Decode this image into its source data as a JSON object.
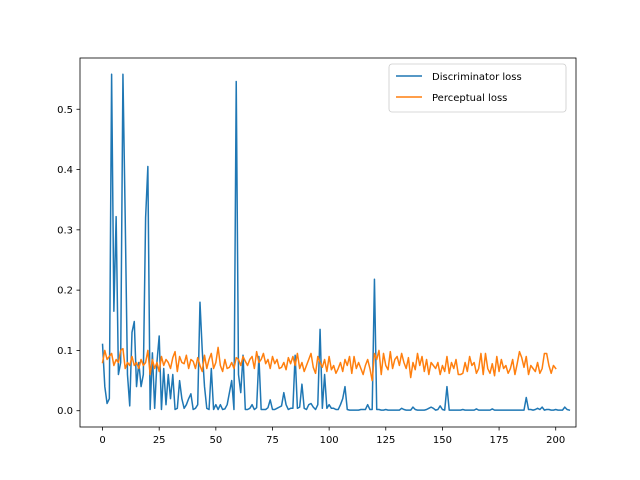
{
  "chart_data": {
    "type": "line",
    "title": "",
    "xlabel": "",
    "ylabel": "",
    "xlim": [
      -9.95,
      208.95
    ],
    "ylim": [
      -0.027,
      0.585
    ],
    "xticks": [
      0,
      25,
      50,
      75,
      100,
      125,
      150,
      175,
      200
    ],
    "yticks": [
      0.0,
      0.1,
      0.2,
      0.3,
      0.4,
      0.5
    ],
    "xtick_labels": [
      "0",
      "25",
      "50",
      "75",
      "100",
      "125",
      "150",
      "175",
      "200"
    ],
    "ytick_labels": [
      "0.0",
      "0.1",
      "0.2",
      "0.3",
      "0.4",
      "0.5"
    ],
    "grid": false,
    "legend": "top-right",
    "series": [
      {
        "name": "Discriminator loss",
        "color": "#1f77b4",
        "values": [
          0.11,
          0.04,
          0.012,
          0.02,
          0.558,
          0.165,
          0.322,
          0.06,
          0.08,
          0.558,
          0.32,
          0.06,
          0.008,
          0.13,
          0.148,
          0.04,
          0.08,
          0.04,
          0.06,
          0.32,
          0.405,
          0.002,
          0.096,
          0.004,
          0.08,
          0.124,
          0.002,
          0.07,
          0.01,
          0.06,
          0.02,
          0.06,
          0.002,
          0.004,
          0.05,
          0.02,
          0.004,
          0.01,
          0.02,
          0.028,
          0.002,
          0.004,
          0.01,
          0.18,
          0.1,
          0.04,
          0.004,
          0.002,
          0.07,
          0.002,
          0.01,
          0.002,
          0.01,
          0.002,
          0.003,
          0.01,
          0.03,
          0.05,
          0.002,
          0.546,
          0.06,
          0.03,
          0.092,
          0.002,
          0.002,
          0.004,
          0.01,
          0.002,
          0.005,
          0.09,
          0.002,
          0.002,
          0.002,
          0.005,
          0.018,
          0.002,
          0.002,
          0.004,
          0.006,
          0.008,
          0.03,
          0.01,
          0.002,
          0.004,
          0.004,
          0.092,
          0.004,
          0.006,
          0.044,
          0.004,
          0.002,
          0.01,
          0.012,
          0.006,
          0.002,
          0.01,
          0.135,
          0.004,
          0.06,
          0.004,
          0.01,
          0.004,
          0.004,
          0.002,
          0.002,
          0.01,
          0.02,
          0.04,
          0.002,
          0.001,
          0.001,
          0.001,
          0.001,
          0.001,
          0.002,
          0.002,
          0.002,
          0.01,
          0.002,
          0.002,
          0.218,
          0.002,
          0.002,
          0.001,
          0.001,
          0.002,
          0.001,
          0.001,
          0.001,
          0.001,
          0.001,
          0.001,
          0.004,
          0.002,
          0.001,
          0.001,
          0.001,
          0.006,
          0.002,
          0.001,
          0.001,
          0.001,
          0.001,
          0.002,
          0.004,
          0.006,
          0.004,
          0.001,
          0.002,
          0.008,
          0.002,
          0.001,
          0.04,
          0.001,
          0.001,
          0.001,
          0.001,
          0.001,
          0.001,
          0.002,
          0.001,
          0.001,
          0.001,
          0.001,
          0.001,
          0.003,
          0.001,
          0.001,
          0.001,
          0.001,
          0.001,
          0.001,
          0.003,
          0.001,
          0.001,
          0.001,
          0.001,
          0.001,
          0.001,
          0.001,
          0.001,
          0.001,
          0.001,
          0.001,
          0.001,
          0.001,
          0.001,
          0.022,
          0.002,
          0.002,
          0.001,
          0.002,
          0.004,
          0.002,
          0.006,
          0.001,
          0.002,
          0.002,
          0.001,
          0.001,
          0.002,
          0.001,
          0.001,
          0.001,
          0.006,
          0.002,
          0.001
        ]
      },
      {
        "name": "Perceptual loss",
        "color": "#ff7f0e",
        "values": [
          0.08,
          0.1,
          0.085,
          0.09,
          0.095,
          0.075,
          0.085,
          0.08,
          0.1,
          0.103,
          0.07,
          0.08,
          0.075,
          0.09,
          0.075,
          0.08,
          0.07,
          0.085,
          0.075,
          0.08,
          0.1,
          0.06,
          0.085,
          0.07,
          0.08,
          0.065,
          0.09,
          0.075,
          0.085,
          0.08,
          0.07,
          0.088,
          0.098,
          0.065,
          0.09,
          0.08,
          0.078,
          0.092,
          0.07,
          0.085,
          0.082,
          0.07,
          0.088,
          0.075,
          0.065,
          0.092,
          0.07,
          0.085,
          0.095,
          0.07,
          0.08,
          0.105,
          0.075,
          0.065,
          0.085,
          0.07,
          0.072,
          0.08,
          0.07,
          0.088,
          0.085,
          0.075,
          0.09,
          0.082,
          0.075,
          0.085,
          0.09,
          0.07,
          0.098,
          0.08,
          0.085,
          0.095,
          0.078,
          0.085,
          0.07,
          0.09,
          0.078,
          0.085,
          0.07,
          0.072,
          0.08,
          0.068,
          0.088,
          0.078,
          0.09,
          0.075,
          0.095,
          0.07,
          0.08,
          0.065,
          0.075,
          0.085,
          0.095,
          0.072,
          0.062,
          0.09,
          0.08,
          0.072,
          0.085,
          0.065,
          0.09,
          0.068,
          0.075,
          0.062,
          0.07,
          0.08,
          0.065,
          0.085,
          0.075,
          0.09,
          0.062,
          0.09,
          0.07,
          0.08,
          0.07,
          0.06,
          0.075,
          0.085,
          0.07,
          0.05,
          0.095,
          0.085,
          0.1,
          0.06,
          0.095,
          0.075,
          0.068,
          0.098,
          0.07,
          0.085,
          0.09,
          0.075,
          0.095,
          0.08,
          0.07,
          0.088,
          0.055,
          0.08,
          0.068,
          0.095,
          0.075,
          0.09,
          0.065,
          0.085,
          0.06,
          0.08,
          0.075,
          0.07,
          0.08,
          0.06,
          0.075,
          0.065,
          0.09,
          0.062,
          0.08,
          0.07,
          0.085,
          0.06,
          0.06,
          0.062,
          0.08,
          0.065,
          0.09,
          0.075,
          0.08,
          0.062,
          0.07,
          0.095,
          0.06,
          0.095,
          0.07,
          0.062,
          0.078,
          0.058,
          0.09,
          0.065,
          0.085,
          0.07,
          0.075,
          0.062,
          0.07,
          0.085,
          0.06,
          0.078,
          0.098,
          0.088,
          0.072,
          0.09,
          0.06,
          0.075,
          0.07,
          0.065,
          0.08,
          0.062,
          0.07,
          0.095,
          0.095,
          0.075,
          0.062,
          0.075,
          0.07
        ]
      }
    ]
  }
}
